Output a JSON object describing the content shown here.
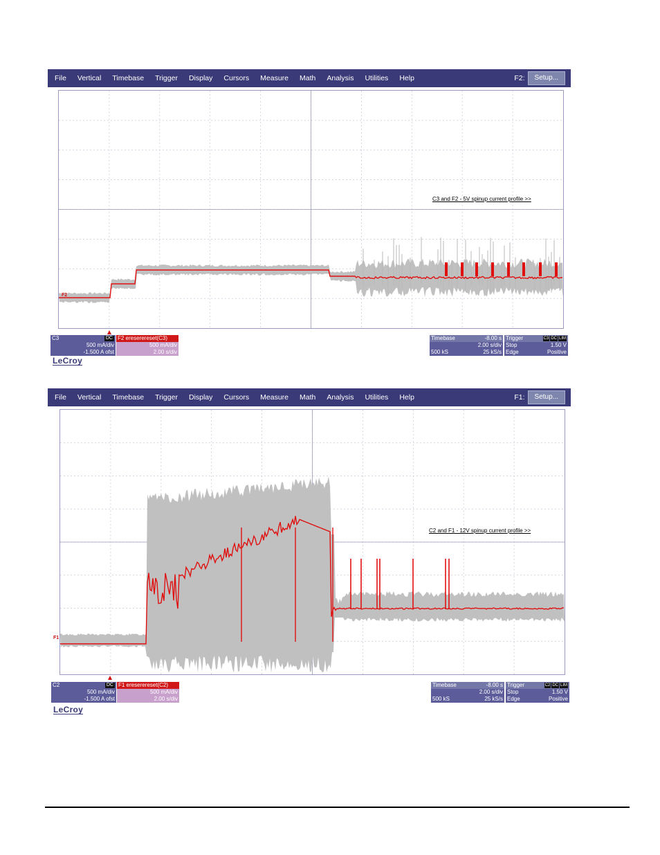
{
  "scopes": [
    {
      "menu": [
        "File",
        "Vertical",
        "Timebase",
        "Trigger",
        "Display",
        "Cursors",
        "Measure",
        "Math",
        "Analysis",
        "Utilities",
        "Help"
      ],
      "function_label": "F2:",
      "setup_button": "Setup...",
      "annotation": "C3 and F2 - 5V spinup current profile >>",
      "trace_marker": "F2",
      "channel": {
        "name": "C3",
        "coupling": "DC",
        "scale": "500 mA/div",
        "offset": "-1.500 A ofst"
      },
      "math": {
        "header": "F2  ereserereset(C3)",
        "scale": "500 mA/div",
        "time": "2.00 s/div"
      },
      "timebase": {
        "label": "Timebase",
        "delay": "-8.00 s",
        "per_div": "2.00 s/div",
        "samples": "500 kS",
        "rate": "25 kS/s"
      },
      "trigger": {
        "label": "Trigger",
        "tags": [
          "C3",
          "DC",
          "LIM"
        ],
        "mode": "Stop",
        "level": "1.50 V",
        "type": "Edge",
        "slope": "Positive"
      },
      "logo": "LeCroy",
      "colors": {
        "menubar": "#3a3a78",
        "trace": "#e01010",
        "envelope": "#bfbfbf"
      }
    },
    {
      "menu": [
        "File",
        "Vertical",
        "Timebase",
        "Trigger",
        "Display",
        "Cursors",
        "Measure",
        "Math",
        "Analysis",
        "Utilities",
        "Help"
      ],
      "function_label": "F1:",
      "setup_button": "Setup...",
      "annotation": "C2 and F1 - 12V spinup current profile >>",
      "trace_marker": "F1",
      "channel": {
        "name": "C2",
        "coupling": "DC",
        "scale": "500 mA/div",
        "offset": "-1.500 A ofst"
      },
      "math": {
        "header": "F1  ereserereset(C2)",
        "scale": "500 mA/div",
        "time": "2.00 s/div"
      },
      "timebase": {
        "label": "Timebase",
        "delay": "-8.00 s",
        "per_div": "2.00 s/div",
        "samples": "500 kS",
        "rate": "25 kS/s"
      },
      "trigger": {
        "label": "Trigger",
        "tags": [
          "C2",
          "DC",
          "LIM"
        ],
        "mode": "Stop",
        "level": "1.50 V",
        "type": "Edge",
        "slope": "Positive"
      },
      "logo": "LeCroy",
      "colors": {
        "menubar": "#3a3a78",
        "trace": "#e01010",
        "envelope": "#bfbfbf"
      }
    }
  ]
}
